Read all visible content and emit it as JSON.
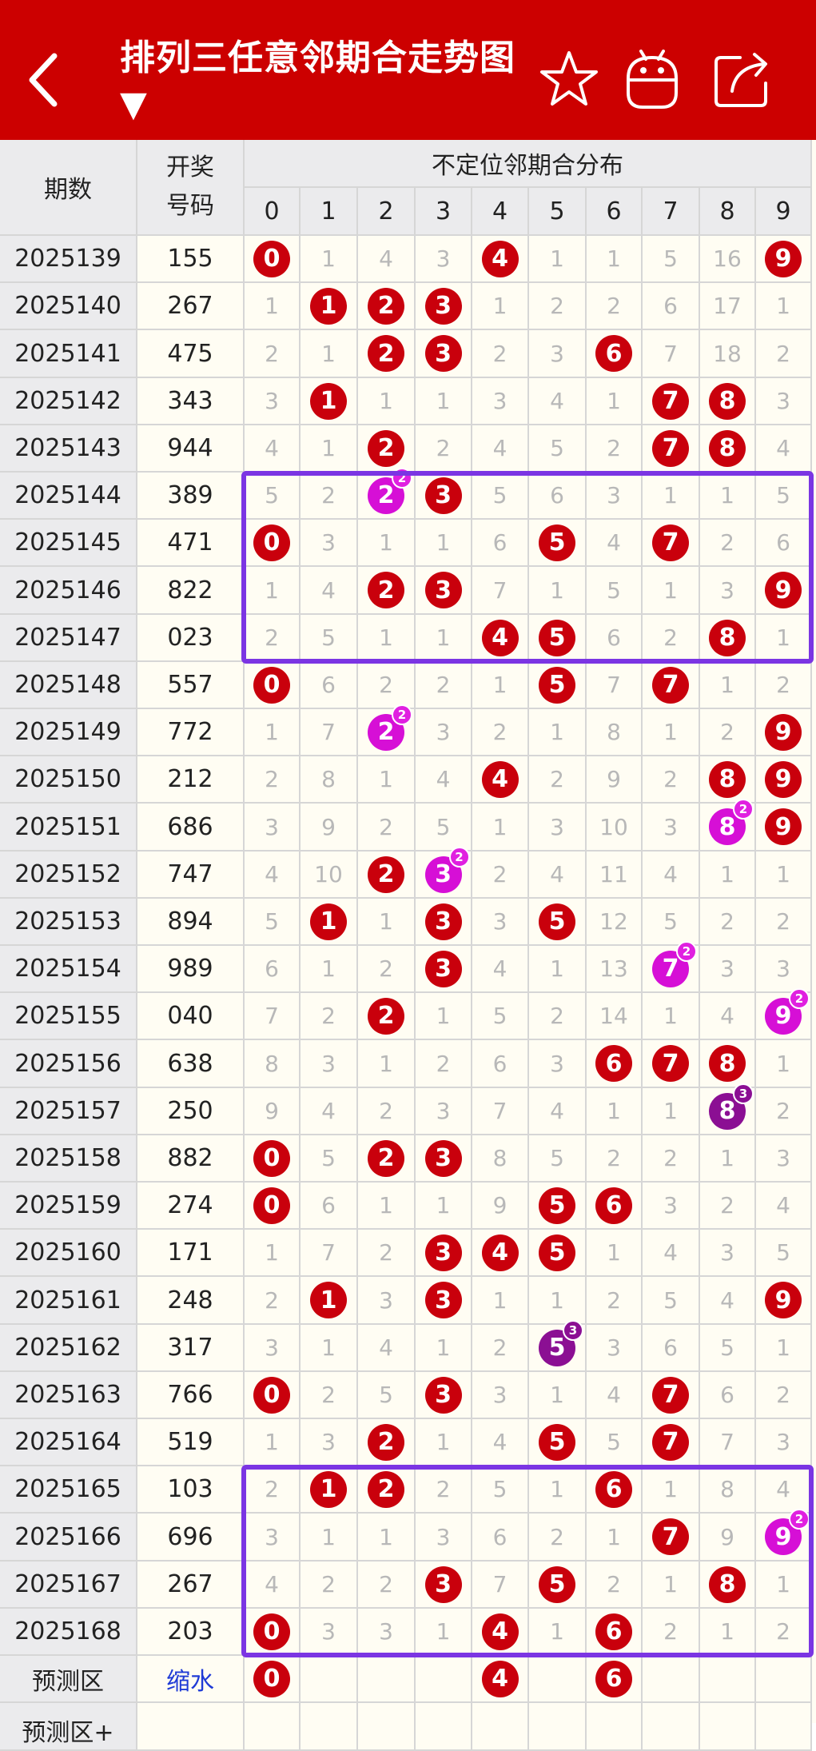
{
  "header": {
    "title": "排列三任意邻期合走势图 ▼",
    "back_icon": "chevron-left-icon",
    "actions": [
      {
        "icon": "star-icon"
      },
      {
        "icon": "android-icon"
      },
      {
        "icon": "share-icon"
      }
    ]
  },
  "table": {
    "col_issue": "期数",
    "col_number_line1": "开奖",
    "col_number_line2": "号码",
    "group_title": "不定位邻期合分布",
    "digits": [
      "0",
      "1",
      "2",
      "3",
      "4",
      "5",
      "6",
      "7",
      "8",
      "9"
    ],
    "rows": [
      {
        "issue": "2025139",
        "num": "155",
        "cells": [
          {
            "b": 1,
            "v": "0"
          },
          {
            "v": "1"
          },
          {
            "v": "4"
          },
          {
            "v": "3"
          },
          {
            "b": 1,
            "v": "4"
          },
          {
            "v": "1"
          },
          {
            "v": "1"
          },
          {
            "v": "5"
          },
          {
            "v": "16"
          },
          {
            "b": 1,
            "v": "9"
          }
        ]
      },
      {
        "issue": "2025140",
        "num": "267",
        "cells": [
          {
            "v": "1"
          },
          {
            "b": 1,
            "v": "1"
          },
          {
            "b": 1,
            "v": "2"
          },
          {
            "b": 1,
            "v": "3"
          },
          {
            "v": "1"
          },
          {
            "v": "2"
          },
          {
            "v": "2"
          },
          {
            "v": "6"
          },
          {
            "v": "17"
          },
          {
            "v": "1"
          }
        ]
      },
      {
        "issue": "2025141",
        "num": "475",
        "cells": [
          {
            "v": "2"
          },
          {
            "v": "1"
          },
          {
            "b": 1,
            "v": "2"
          },
          {
            "b": 1,
            "v": "3"
          },
          {
            "v": "2"
          },
          {
            "v": "3"
          },
          {
            "b": 1,
            "v": "6"
          },
          {
            "v": "7"
          },
          {
            "v": "18"
          },
          {
            "v": "2"
          }
        ]
      },
      {
        "issue": "2025142",
        "num": "343",
        "cells": [
          {
            "v": "3"
          },
          {
            "b": 1,
            "v": "1"
          },
          {
            "v": "1"
          },
          {
            "v": "1"
          },
          {
            "v": "3"
          },
          {
            "v": "4"
          },
          {
            "v": "1"
          },
          {
            "b": 1,
            "v": "7"
          },
          {
            "b": 1,
            "v": "8"
          },
          {
            "v": "3"
          }
        ]
      },
      {
        "issue": "2025143",
        "num": "944",
        "cells": [
          {
            "v": "4"
          },
          {
            "v": "1"
          },
          {
            "b": 1,
            "v": "2"
          },
          {
            "v": "2"
          },
          {
            "v": "4"
          },
          {
            "v": "5"
          },
          {
            "v": "2"
          },
          {
            "b": 1,
            "v": "7"
          },
          {
            "b": 1,
            "v": "8"
          },
          {
            "v": "4"
          }
        ]
      },
      {
        "issue": "2025144",
        "num": "389",
        "cells": [
          {
            "v": "5"
          },
          {
            "v": "2"
          },
          {
            "b": 2,
            "v": "2",
            "s": "2"
          },
          {
            "b": 1,
            "v": "3"
          },
          {
            "v": "5"
          },
          {
            "v": "6"
          },
          {
            "v": "3"
          },
          {
            "v": "1"
          },
          {
            "v": "1"
          },
          {
            "v": "5"
          }
        ]
      },
      {
        "issue": "2025145",
        "num": "471",
        "cells": [
          {
            "b": 1,
            "v": "0"
          },
          {
            "v": "3"
          },
          {
            "v": "1"
          },
          {
            "v": "1"
          },
          {
            "v": "6"
          },
          {
            "b": 1,
            "v": "5"
          },
          {
            "v": "4"
          },
          {
            "b": 1,
            "v": "7"
          },
          {
            "v": "2"
          },
          {
            "v": "6"
          }
        ]
      },
      {
        "issue": "2025146",
        "num": "822",
        "cells": [
          {
            "v": "1"
          },
          {
            "v": "4"
          },
          {
            "b": 1,
            "v": "2"
          },
          {
            "b": 1,
            "v": "3"
          },
          {
            "v": "7"
          },
          {
            "v": "1"
          },
          {
            "v": "5"
          },
          {
            "v": "1"
          },
          {
            "v": "3"
          },
          {
            "b": 1,
            "v": "9"
          }
        ]
      },
      {
        "issue": "2025147",
        "num": "023",
        "cells": [
          {
            "v": "2"
          },
          {
            "v": "5"
          },
          {
            "v": "1"
          },
          {
            "v": "1"
          },
          {
            "b": 1,
            "v": "4"
          },
          {
            "b": 1,
            "v": "5"
          },
          {
            "v": "6"
          },
          {
            "v": "2"
          },
          {
            "b": 1,
            "v": "8"
          },
          {
            "v": "1"
          }
        ]
      },
      {
        "issue": "2025148",
        "num": "557",
        "cells": [
          {
            "b": 1,
            "v": "0"
          },
          {
            "v": "6"
          },
          {
            "v": "2"
          },
          {
            "v": "2"
          },
          {
            "v": "1"
          },
          {
            "b": 1,
            "v": "5"
          },
          {
            "v": "7"
          },
          {
            "b": 1,
            "v": "7"
          },
          {
            "v": "1"
          },
          {
            "v": "2"
          }
        ]
      },
      {
        "issue": "2025149",
        "num": "772",
        "cells": [
          {
            "v": "1"
          },
          {
            "v": "7"
          },
          {
            "b": 2,
            "v": "2",
            "s": "2"
          },
          {
            "v": "3"
          },
          {
            "v": "2"
          },
          {
            "v": "1"
          },
          {
            "v": "8"
          },
          {
            "v": "1"
          },
          {
            "v": "2"
          },
          {
            "b": 1,
            "v": "9"
          }
        ]
      },
      {
        "issue": "2025150",
        "num": "212",
        "cells": [
          {
            "v": "2"
          },
          {
            "v": "8"
          },
          {
            "v": "1"
          },
          {
            "v": "4"
          },
          {
            "b": 1,
            "v": "4"
          },
          {
            "v": "2"
          },
          {
            "v": "9"
          },
          {
            "v": "2"
          },
          {
            "b": 1,
            "v": "8"
          },
          {
            "b": 1,
            "v": "9"
          }
        ]
      },
      {
        "issue": "2025151",
        "num": "686",
        "cells": [
          {
            "v": "3"
          },
          {
            "v": "9"
          },
          {
            "v": "2"
          },
          {
            "v": "5"
          },
          {
            "v": "1"
          },
          {
            "v": "3"
          },
          {
            "v": "10"
          },
          {
            "v": "3"
          },
          {
            "b": 2,
            "v": "8",
            "s": "2"
          },
          {
            "b": 1,
            "v": "9"
          }
        ]
      },
      {
        "issue": "2025152",
        "num": "747",
        "cells": [
          {
            "v": "4"
          },
          {
            "v": "10"
          },
          {
            "b": 1,
            "v": "2"
          },
          {
            "b": 2,
            "v": "3",
            "s": "2"
          },
          {
            "v": "2"
          },
          {
            "v": "4"
          },
          {
            "v": "11"
          },
          {
            "v": "4"
          },
          {
            "v": "1"
          },
          {
            "v": "1"
          }
        ]
      },
      {
        "issue": "2025153",
        "num": "894",
        "cells": [
          {
            "v": "5"
          },
          {
            "b": 1,
            "v": "1"
          },
          {
            "v": "1"
          },
          {
            "b": 1,
            "v": "3"
          },
          {
            "v": "3"
          },
          {
            "b": 1,
            "v": "5"
          },
          {
            "v": "12"
          },
          {
            "v": "5"
          },
          {
            "v": "2"
          },
          {
            "v": "2"
          }
        ]
      },
      {
        "issue": "2025154",
        "num": "989",
        "cells": [
          {
            "v": "6"
          },
          {
            "v": "1"
          },
          {
            "v": "2"
          },
          {
            "b": 1,
            "v": "3"
          },
          {
            "v": "4"
          },
          {
            "v": "1"
          },
          {
            "v": "13"
          },
          {
            "b": 2,
            "v": "7",
            "s": "2"
          },
          {
            "v": "3"
          },
          {
            "v": "3"
          }
        ]
      },
      {
        "issue": "2025155",
        "num": "040",
        "cells": [
          {
            "v": "7"
          },
          {
            "v": "2"
          },
          {
            "b": 1,
            "v": "2"
          },
          {
            "v": "1"
          },
          {
            "v": "5"
          },
          {
            "v": "2"
          },
          {
            "v": "14"
          },
          {
            "v": "1"
          },
          {
            "v": "4"
          },
          {
            "b": 2,
            "v": "9",
            "s": "2"
          }
        ]
      },
      {
        "issue": "2025156",
        "num": "638",
        "cells": [
          {
            "v": "8"
          },
          {
            "v": "3"
          },
          {
            "v": "1"
          },
          {
            "v": "2"
          },
          {
            "v": "6"
          },
          {
            "v": "3"
          },
          {
            "b": 1,
            "v": "6"
          },
          {
            "b": 1,
            "v": "7"
          },
          {
            "b": 1,
            "v": "8"
          },
          {
            "v": "1"
          }
        ]
      },
      {
        "issue": "2025157",
        "num": "250",
        "cells": [
          {
            "v": "9"
          },
          {
            "v": "4"
          },
          {
            "v": "2"
          },
          {
            "v": "3"
          },
          {
            "v": "7"
          },
          {
            "v": "4"
          },
          {
            "v": "1"
          },
          {
            "v": "1"
          },
          {
            "b": 3,
            "v": "8",
            "s": "3"
          },
          {
            "v": "2"
          }
        ]
      },
      {
        "issue": "2025158",
        "num": "882",
        "cells": [
          {
            "b": 1,
            "v": "0"
          },
          {
            "v": "5"
          },
          {
            "b": 1,
            "v": "2"
          },
          {
            "b": 1,
            "v": "3"
          },
          {
            "v": "8"
          },
          {
            "v": "5"
          },
          {
            "v": "2"
          },
          {
            "v": "2"
          },
          {
            "v": "1"
          },
          {
            "v": "3"
          }
        ]
      },
      {
        "issue": "2025159",
        "num": "274",
        "cells": [
          {
            "b": 1,
            "v": "0"
          },
          {
            "v": "6"
          },
          {
            "v": "1"
          },
          {
            "v": "1"
          },
          {
            "v": "9"
          },
          {
            "b": 1,
            "v": "5"
          },
          {
            "b": 1,
            "v": "6"
          },
          {
            "v": "3"
          },
          {
            "v": "2"
          },
          {
            "v": "4"
          }
        ]
      },
      {
        "issue": "2025160",
        "num": "171",
        "cells": [
          {
            "v": "1"
          },
          {
            "v": "7"
          },
          {
            "v": "2"
          },
          {
            "b": 1,
            "v": "3"
          },
          {
            "b": 1,
            "v": "4"
          },
          {
            "b": 1,
            "v": "5"
          },
          {
            "v": "1"
          },
          {
            "v": "4"
          },
          {
            "v": "3"
          },
          {
            "v": "5"
          }
        ]
      },
      {
        "issue": "2025161",
        "num": "248",
        "cells": [
          {
            "v": "2"
          },
          {
            "b": 1,
            "v": "1"
          },
          {
            "v": "3"
          },
          {
            "b": 1,
            "v": "3"
          },
          {
            "v": "1"
          },
          {
            "v": "1"
          },
          {
            "v": "2"
          },
          {
            "v": "5"
          },
          {
            "v": "4"
          },
          {
            "b": 1,
            "v": "9"
          }
        ]
      },
      {
        "issue": "2025162",
        "num": "317",
        "cells": [
          {
            "v": "3"
          },
          {
            "v": "1"
          },
          {
            "v": "4"
          },
          {
            "v": "1"
          },
          {
            "v": "2"
          },
          {
            "b": 3,
            "v": "5",
            "s": "3"
          },
          {
            "v": "3"
          },
          {
            "v": "6"
          },
          {
            "v": "5"
          },
          {
            "v": "1"
          }
        ]
      },
      {
        "issue": "2025163",
        "num": "766",
        "cells": [
          {
            "b": 1,
            "v": "0"
          },
          {
            "v": "2"
          },
          {
            "v": "5"
          },
          {
            "b": 1,
            "v": "3"
          },
          {
            "v": "3"
          },
          {
            "v": "1"
          },
          {
            "v": "4"
          },
          {
            "b": 1,
            "v": "7"
          },
          {
            "v": "6"
          },
          {
            "v": "2"
          }
        ]
      },
      {
        "issue": "2025164",
        "num": "519",
        "cells": [
          {
            "v": "1"
          },
          {
            "v": "3"
          },
          {
            "b": 1,
            "v": "2"
          },
          {
            "v": "1"
          },
          {
            "v": "4"
          },
          {
            "b": 1,
            "v": "5"
          },
          {
            "v": "5"
          },
          {
            "b": 1,
            "v": "7"
          },
          {
            "v": "7"
          },
          {
            "v": "3"
          }
        ]
      },
      {
        "issue": "2025165",
        "num": "103",
        "cells": [
          {
            "v": "2"
          },
          {
            "b": 1,
            "v": "1"
          },
          {
            "b": 1,
            "v": "2"
          },
          {
            "v": "2"
          },
          {
            "v": "5"
          },
          {
            "v": "1"
          },
          {
            "b": 1,
            "v": "6"
          },
          {
            "v": "1"
          },
          {
            "v": "8"
          },
          {
            "v": "4"
          }
        ]
      },
      {
        "issue": "2025166",
        "num": "696",
        "cells": [
          {
            "v": "3"
          },
          {
            "v": "1"
          },
          {
            "v": "1"
          },
          {
            "v": "3"
          },
          {
            "v": "6"
          },
          {
            "v": "2"
          },
          {
            "v": "1"
          },
          {
            "b": 1,
            "v": "7"
          },
          {
            "v": "9"
          },
          {
            "b": 2,
            "v": "9",
            "s": "2"
          }
        ]
      },
      {
        "issue": "2025167",
        "num": "267",
        "cells": [
          {
            "v": "4"
          },
          {
            "v": "2"
          },
          {
            "v": "2"
          },
          {
            "b": 1,
            "v": "3"
          },
          {
            "v": "7"
          },
          {
            "b": 1,
            "v": "5"
          },
          {
            "v": "2"
          },
          {
            "v": "1"
          },
          {
            "b": 1,
            "v": "8"
          },
          {
            "v": "1"
          }
        ]
      },
      {
        "issue": "2025168",
        "num": "203",
        "cells": [
          {
            "b": 1,
            "v": "0"
          },
          {
            "v": "3"
          },
          {
            "v": "3"
          },
          {
            "v": "1"
          },
          {
            "b": 1,
            "v": "4"
          },
          {
            "v": "1"
          },
          {
            "b": 1,
            "v": "6"
          },
          {
            "v": "2"
          },
          {
            "v": "1"
          },
          {
            "v": "2"
          }
        ]
      }
    ],
    "forecast": {
      "label": "预测区",
      "action": "缩水",
      "cells": [
        {
          "b": 1,
          "v": "0"
        },
        {},
        {},
        {},
        {
          "b": 1,
          "v": "4"
        },
        {},
        {
          "b": 1,
          "v": "6"
        },
        {},
        {},
        {}
      ]
    },
    "forecast_plus": {
      "label": "预测区+"
    },
    "highlight_groups": [
      {
        "from_issue": "2025144",
        "to_issue": "2025147"
      },
      {
        "from_issue": "2025165",
        "to_issue": "2025168"
      }
    ],
    "colors": {
      "header_bg": "#cc0000",
      "hit_ball": "#c9000c",
      "double_ball": "#d60fd6",
      "triple_ball": "#8b0f93",
      "highlight_box": "#7b35e3",
      "action_link": "#1f3bd6"
    }
  }
}
